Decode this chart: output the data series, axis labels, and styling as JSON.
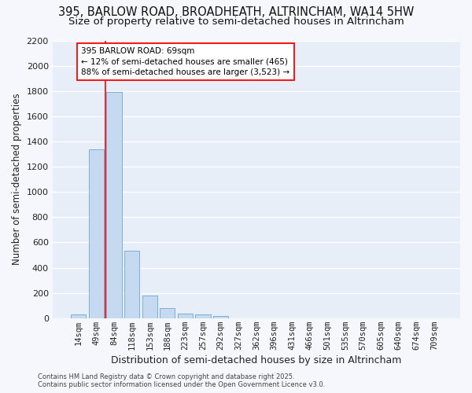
{
  "title_line1": "395, BARLOW ROAD, BROADHEATH, ALTRINCHAM, WA14 5HW",
  "title_line2": "Size of property relative to semi-detached houses in Altrincham",
  "xlabel": "Distribution of semi-detached houses by size in Altrincham",
  "ylabel": "Number of semi-detached properties",
  "categories": [
    "14sqm",
    "49sqm",
    "84sqm",
    "118sqm",
    "153sqm",
    "188sqm",
    "223sqm",
    "257sqm",
    "292sqm",
    "327sqm",
    "362sqm",
    "396sqm",
    "431sqm",
    "466sqm",
    "501sqm",
    "535sqm",
    "570sqm",
    "605sqm",
    "640sqm",
    "674sqm",
    "709sqm"
  ],
  "values": [
    30,
    1340,
    1790,
    535,
    180,
    80,
    35,
    30,
    20,
    0,
    0,
    0,
    0,
    0,
    0,
    0,
    0,
    0,
    0,
    0,
    0
  ],
  "bar_color": "#c5d9f0",
  "bar_edge_color": "#7aafd4",
  "plot_bg_color": "#e8eef8",
  "fig_bg_color": "#f5f7fd",
  "grid_color": "#ffffff",
  "annotation_text": "395 BARLOW ROAD: 69sqm\n← 12% of semi-detached houses are smaller (465)\n88% of semi-detached houses are larger (3,523) →",
  "vline_x": 1.5,
  "ylim": [
    0,
    2200
  ],
  "yticks": [
    0,
    200,
    400,
    600,
    800,
    1000,
    1200,
    1400,
    1600,
    1800,
    2000,
    2200
  ],
  "footnote": "Contains HM Land Registry data © Crown copyright and database right 2025.\nContains public sector information licensed under the Open Government Licence v3.0.",
  "title_fontsize": 10.5,
  "subtitle_fontsize": 9.5,
  "tick_fontsize": 7.5,
  "ylabel_fontsize": 8.5,
  "xlabel_fontsize": 9,
  "annot_fontsize": 7.5,
  "footnote_fontsize": 6
}
